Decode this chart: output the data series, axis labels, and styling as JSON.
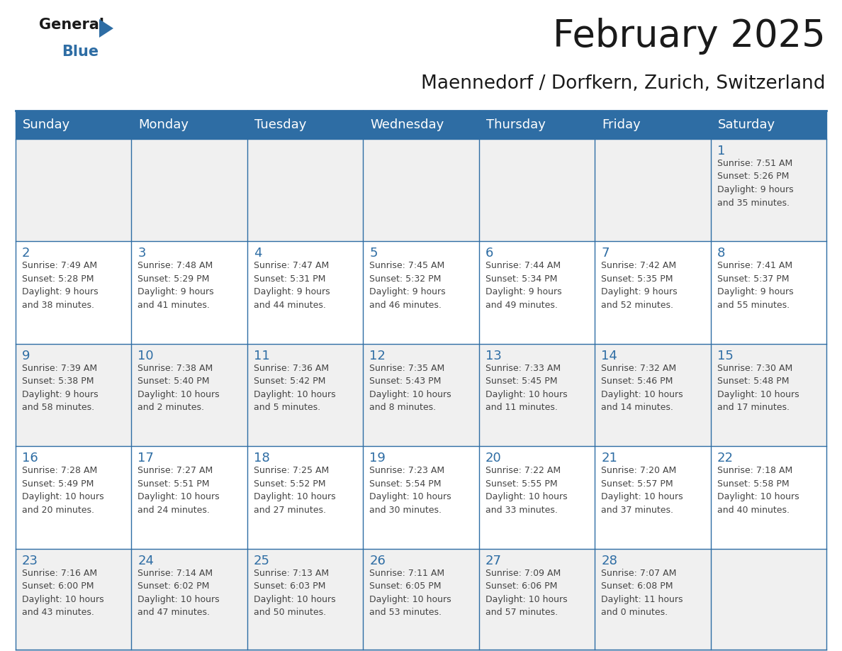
{
  "title": "February 2025",
  "subtitle": "Maennedorf / Dorfkern, Zurich, Switzerland",
  "header_bg": "#2E6DA4",
  "header_text": "#FFFFFF",
  "cell_bg_light": "#F0F0F0",
  "cell_bg_white": "#FFFFFF",
  "day_number_color": "#2E6DA4",
  "text_color": "#444444",
  "border_color": "#2E6DA4",
  "days_of_week": [
    "Sunday",
    "Monday",
    "Tuesday",
    "Wednesday",
    "Thursday",
    "Friday",
    "Saturday"
  ],
  "weeks": [
    [
      {
        "day": "",
        "info": ""
      },
      {
        "day": "",
        "info": ""
      },
      {
        "day": "",
        "info": ""
      },
      {
        "day": "",
        "info": ""
      },
      {
        "day": "",
        "info": ""
      },
      {
        "day": "",
        "info": ""
      },
      {
        "day": "1",
        "info": "Sunrise: 7:51 AM\nSunset: 5:26 PM\nDaylight: 9 hours\nand 35 minutes."
      }
    ],
    [
      {
        "day": "2",
        "info": "Sunrise: 7:49 AM\nSunset: 5:28 PM\nDaylight: 9 hours\nand 38 minutes."
      },
      {
        "day": "3",
        "info": "Sunrise: 7:48 AM\nSunset: 5:29 PM\nDaylight: 9 hours\nand 41 minutes."
      },
      {
        "day": "4",
        "info": "Sunrise: 7:47 AM\nSunset: 5:31 PM\nDaylight: 9 hours\nand 44 minutes."
      },
      {
        "day": "5",
        "info": "Sunrise: 7:45 AM\nSunset: 5:32 PM\nDaylight: 9 hours\nand 46 minutes."
      },
      {
        "day": "6",
        "info": "Sunrise: 7:44 AM\nSunset: 5:34 PM\nDaylight: 9 hours\nand 49 minutes."
      },
      {
        "day": "7",
        "info": "Sunrise: 7:42 AM\nSunset: 5:35 PM\nDaylight: 9 hours\nand 52 minutes."
      },
      {
        "day": "8",
        "info": "Sunrise: 7:41 AM\nSunset: 5:37 PM\nDaylight: 9 hours\nand 55 minutes."
      }
    ],
    [
      {
        "day": "9",
        "info": "Sunrise: 7:39 AM\nSunset: 5:38 PM\nDaylight: 9 hours\nand 58 minutes."
      },
      {
        "day": "10",
        "info": "Sunrise: 7:38 AM\nSunset: 5:40 PM\nDaylight: 10 hours\nand 2 minutes."
      },
      {
        "day": "11",
        "info": "Sunrise: 7:36 AM\nSunset: 5:42 PM\nDaylight: 10 hours\nand 5 minutes."
      },
      {
        "day": "12",
        "info": "Sunrise: 7:35 AM\nSunset: 5:43 PM\nDaylight: 10 hours\nand 8 minutes."
      },
      {
        "day": "13",
        "info": "Sunrise: 7:33 AM\nSunset: 5:45 PM\nDaylight: 10 hours\nand 11 minutes."
      },
      {
        "day": "14",
        "info": "Sunrise: 7:32 AM\nSunset: 5:46 PM\nDaylight: 10 hours\nand 14 minutes."
      },
      {
        "day": "15",
        "info": "Sunrise: 7:30 AM\nSunset: 5:48 PM\nDaylight: 10 hours\nand 17 minutes."
      }
    ],
    [
      {
        "day": "16",
        "info": "Sunrise: 7:28 AM\nSunset: 5:49 PM\nDaylight: 10 hours\nand 20 minutes."
      },
      {
        "day": "17",
        "info": "Sunrise: 7:27 AM\nSunset: 5:51 PM\nDaylight: 10 hours\nand 24 minutes."
      },
      {
        "day": "18",
        "info": "Sunrise: 7:25 AM\nSunset: 5:52 PM\nDaylight: 10 hours\nand 27 minutes."
      },
      {
        "day": "19",
        "info": "Sunrise: 7:23 AM\nSunset: 5:54 PM\nDaylight: 10 hours\nand 30 minutes."
      },
      {
        "day": "20",
        "info": "Sunrise: 7:22 AM\nSunset: 5:55 PM\nDaylight: 10 hours\nand 33 minutes."
      },
      {
        "day": "21",
        "info": "Sunrise: 7:20 AM\nSunset: 5:57 PM\nDaylight: 10 hours\nand 37 minutes."
      },
      {
        "day": "22",
        "info": "Sunrise: 7:18 AM\nSunset: 5:58 PM\nDaylight: 10 hours\nand 40 minutes."
      }
    ],
    [
      {
        "day": "23",
        "info": "Sunrise: 7:16 AM\nSunset: 6:00 PM\nDaylight: 10 hours\nand 43 minutes."
      },
      {
        "day": "24",
        "info": "Sunrise: 7:14 AM\nSunset: 6:02 PM\nDaylight: 10 hours\nand 47 minutes."
      },
      {
        "day": "25",
        "info": "Sunrise: 7:13 AM\nSunset: 6:03 PM\nDaylight: 10 hours\nand 50 minutes."
      },
      {
        "day": "26",
        "info": "Sunrise: 7:11 AM\nSunset: 6:05 PM\nDaylight: 10 hours\nand 53 minutes."
      },
      {
        "day": "27",
        "info": "Sunrise: 7:09 AM\nSunset: 6:06 PM\nDaylight: 10 hours\nand 57 minutes."
      },
      {
        "day": "28",
        "info": "Sunrise: 7:07 AM\nSunset: 6:08 PM\nDaylight: 11 hours\nand 0 minutes."
      },
      {
        "day": "",
        "info": ""
      }
    ]
  ],
  "logo_general_color": "#1a1a1a",
  "logo_blue_color": "#2E6DA4",
  "logo_triangle_color": "#2E6DA4",
  "title_fontsize": 38,
  "subtitle_fontsize": 19,
  "dayheader_fontsize": 13,
  "daynumber_fontsize": 13,
  "cell_fontsize": 9
}
